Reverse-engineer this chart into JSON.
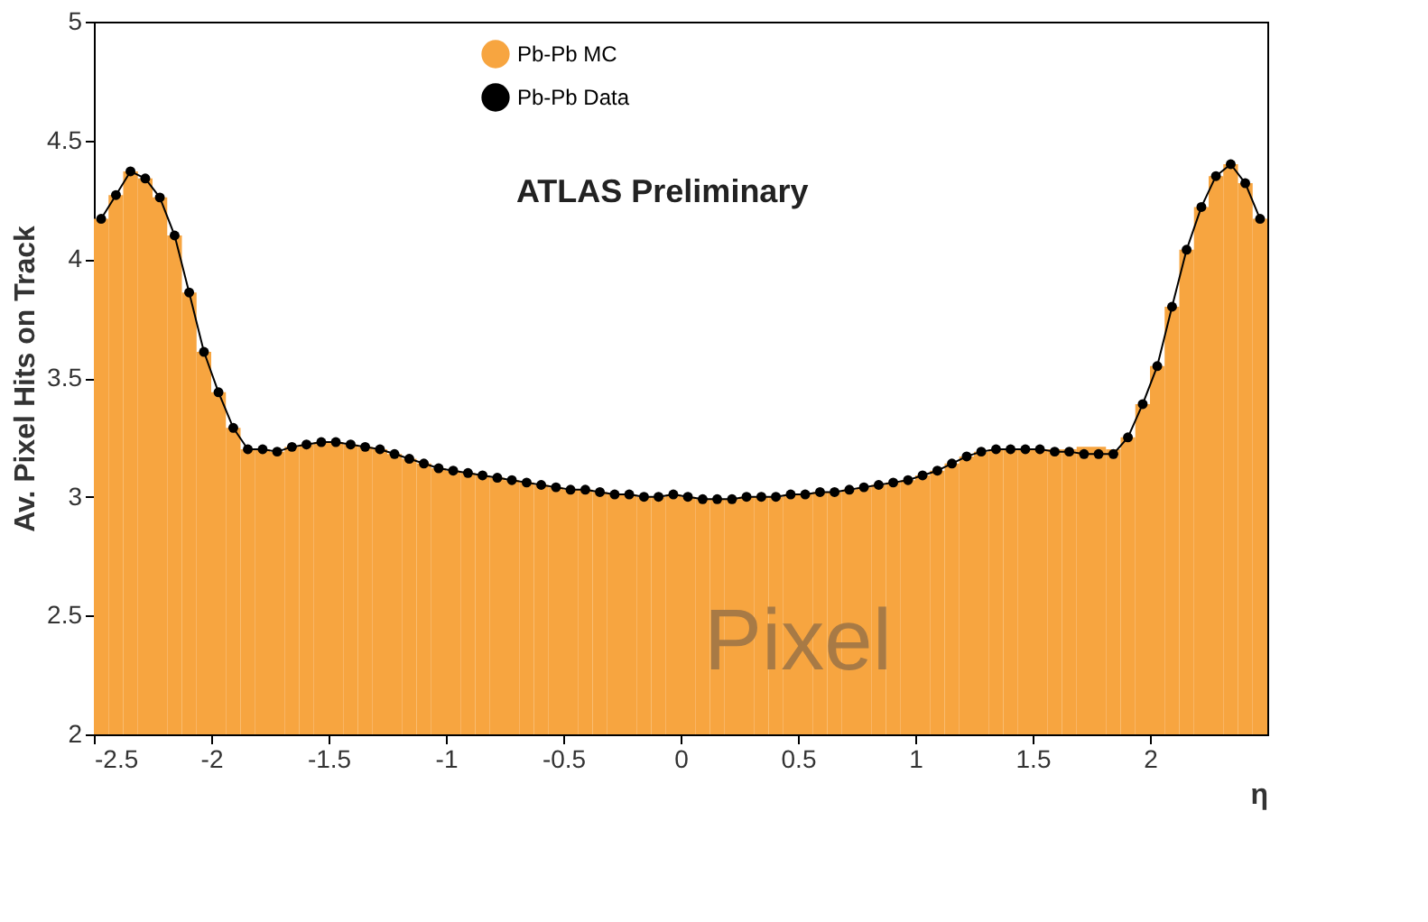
{
  "chart_data": {
    "type": "histogram",
    "xlabel": "η",
    "ylabel": "Av. Pixel Hits on Track",
    "bins": [
      -2.5,
      -2.4375,
      -2.375,
      -2.3125,
      -2.25,
      -2.1875,
      -2.125,
      -2.0625,
      -2.0,
      -1.9375,
      -1.875,
      -1.8125,
      -1.75,
      -1.6875,
      -1.625,
      -1.5625,
      -1.5,
      -1.4375,
      -1.375,
      -1.3125,
      -1.25,
      -1.1875,
      -1.125,
      -1.0625,
      -1.0,
      -0.9375,
      -0.875,
      -0.8125,
      -0.75,
      -0.6875,
      -0.625,
      -0.5625,
      -0.5,
      -0.4375,
      -0.375,
      -0.3125,
      -0.25,
      -0.1875,
      -0.125,
      -0.0625,
      0.0,
      0.0625,
      0.125,
      0.1875,
      0.25,
      0.3125,
      0.375,
      0.4375,
      0.5,
      0.5625,
      0.625,
      0.6875,
      0.75,
      0.8125,
      0.875,
      0.9375,
      1.0,
      1.0625,
      1.125,
      1.1875,
      1.25,
      1.3125,
      1.375,
      1.4375,
      1.5,
      1.5625,
      1.625,
      1.6875,
      1.75,
      1.8125,
      1.875,
      1.9375,
      2.0,
      2.0625,
      2.125,
      2.1875,
      2.25,
      2.3125,
      2.375,
      2.4375,
      2.5
    ],
    "series": [
      {
        "name": "Pb-Pb MC",
        "color": "#f7a540",
        "values": [
          4.17,
          4.27,
          4.37,
          4.34,
          4.26,
          4.1,
          3.86,
          3.61,
          3.44,
          3.29,
          3.2,
          3.2,
          3.19,
          3.21,
          3.22,
          3.23,
          3.23,
          3.22,
          3.21,
          3.2,
          3.18,
          3.16,
          3.14,
          3.12,
          3.11,
          3.1,
          3.09,
          3.08,
          3.07,
          3.06,
          3.05,
          3.04,
          3.03,
          3.03,
          3.02,
          3.01,
          3.01,
          3.0,
          3.0,
          3.01,
          3.0,
          2.99,
          2.99,
          2.99,
          3.0,
          3.0,
          3.0,
          3.01,
          3.01,
          3.02,
          3.02,
          3.03,
          3.04,
          3.05,
          3.06,
          3.07,
          3.09,
          3.11,
          3.14,
          3.17,
          3.19,
          3.2,
          3.2,
          3.2,
          3.2,
          3.2,
          3.2,
          3.21,
          3.21,
          3.2,
          3.25,
          3.39,
          3.55,
          3.8,
          4.04,
          4.22,
          4.35,
          4.4,
          4.32,
          4.17
        ]
      },
      {
        "name": "Pb-Pb Data",
        "type": "line",
        "marker": "circle",
        "color": "#000000",
        "x": [
          -2.469,
          -2.406,
          -2.344,
          -2.281,
          -2.219,
          -2.156,
          -2.094,
          -2.031,
          -1.969,
          -1.906,
          -1.844,
          -1.781,
          -1.719,
          -1.656,
          -1.594,
          -1.531,
          -1.469,
          -1.406,
          -1.344,
          -1.281,
          -1.219,
          -1.156,
          -1.094,
          -1.031,
          -0.969,
          -0.906,
          -0.844,
          -0.781,
          -0.719,
          -0.656,
          -0.594,
          -0.531,
          -0.469,
          -0.406,
          -0.344,
          -0.281,
          -0.219,
          -0.156,
          -0.094,
          -0.031,
          0.031,
          0.094,
          0.156,
          0.219,
          0.281,
          0.344,
          0.406,
          0.469,
          0.531,
          0.594,
          0.656,
          0.719,
          0.781,
          0.844,
          0.906,
          0.969,
          1.031,
          1.094,
          1.156,
          1.219,
          1.281,
          1.344,
          1.406,
          1.469,
          1.531,
          1.594,
          1.656,
          1.719,
          1.781,
          1.844,
          1.906,
          1.969,
          2.031,
          2.094,
          2.156,
          2.219,
          2.281,
          2.344,
          2.406,
          2.469
        ],
        "values": [
          4.17,
          4.27,
          4.37,
          4.34,
          4.26,
          4.1,
          3.86,
          3.61,
          3.44,
          3.29,
          3.2,
          3.2,
          3.19,
          3.21,
          3.22,
          3.23,
          3.23,
          3.22,
          3.21,
          3.2,
          3.18,
          3.16,
          3.14,
          3.12,
          3.11,
          3.1,
          3.09,
          3.08,
          3.07,
          3.06,
          3.05,
          3.04,
          3.03,
          3.03,
          3.02,
          3.01,
          3.01,
          3.0,
          3.0,
          3.01,
          3.0,
          2.99,
          2.99,
          2.99,
          3.0,
          3.0,
          3.0,
          3.01,
          3.01,
          3.02,
          3.02,
          3.03,
          3.04,
          3.05,
          3.06,
          3.07,
          3.09,
          3.11,
          3.14,
          3.17,
          3.19,
          3.2,
          3.2,
          3.2,
          3.2,
          3.19,
          3.19,
          3.18,
          3.18,
          3.18,
          3.25,
          3.39,
          3.55,
          3.8,
          4.04,
          4.22,
          4.35,
          4.4,
          4.32,
          4.17
        ]
      }
    ],
    "xlim": [
      -2.5,
      2.5
    ],
    "xticks": [
      -2.5,
      -2,
      -1.5,
      -1,
      -0.5,
      0,
      0.5,
      1,
      1.5,
      2
    ],
    "ylim": [
      2,
      5
    ],
    "yticks": [
      2,
      2.5,
      3,
      3.5,
      4,
      4.5,
      5
    ],
    "grid": false,
    "legend": "top",
    "annotations": [
      "ATLAS Preliminary",
      "Pixel"
    ]
  }
}
